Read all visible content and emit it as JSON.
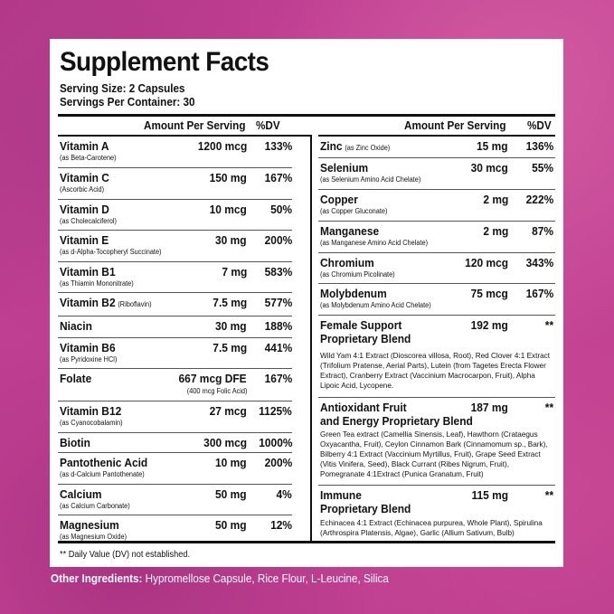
{
  "label": {
    "title": "Supplement Facts",
    "serving_size": "Serving Size: 2 Capsules",
    "servings_per_container": "Servings Per Container: 30",
    "col_amount": "Amount Per Serving",
    "col_dv": "%DV",
    "footnote": "** Daily Value (DV) not established.",
    "other_label": "Other Ingredients:",
    "other_value": "Hypromellose Capsule, Rice Flour, L-Leucine, Silica"
  },
  "left": [
    {
      "name": "Vitamin A",
      "sub": "(as Beta-Carotene)",
      "amount": "1200 mcg",
      "dv": "133%"
    },
    {
      "name": "Vitamin C",
      "sub": "(Ascorbic Acid)",
      "amount": "150 mg",
      "dv": "167%"
    },
    {
      "name": "Vitamin D",
      "sub": "(as Cholecalciferol)",
      "amount": "10 mcg",
      "dv": "50%"
    },
    {
      "name": "Vitamin E",
      "sub": "(as d-Alpha-Tocopheryl Succinate)",
      "amount": "30 mg",
      "dv": "200%"
    },
    {
      "name": "Vitamin B1",
      "sub": "(as Thiamin Mononitrate)",
      "amount": "7 mg",
      "dv": "583%"
    },
    {
      "name": "Vitamin B2",
      "inline": "(Riboflavin)",
      "amount": "7.5 mg",
      "dv": "577%"
    },
    {
      "name": "Niacin",
      "amount": "30 mg",
      "dv": "188%"
    },
    {
      "name": "Vitamin B6",
      "sub": "(as Pyridoxine HCl)",
      "amount": "7.5 mg",
      "dv": "441%"
    },
    {
      "name": "Folate",
      "amount": "667 mcg DFE",
      "amount_sub": "(400 mcg Folic Acid)",
      "dv": "167%"
    },
    {
      "name": "Vitamin B12",
      "sub": "(as Cyanocobalamin)",
      "amount": "27 mcg",
      "dv": "1125%"
    },
    {
      "name": "Biotin",
      "amount": "300 mcg",
      "dv": "1000%"
    },
    {
      "name": "Pantothenic Acid",
      "sub": "(as d-Calcium Pantothenate)",
      "amount": "10 mg",
      "dv": "200%"
    },
    {
      "name": "Calcium",
      "sub": "(as Calcium Carbonate)",
      "amount": "50 mg",
      "dv": "4%"
    },
    {
      "name": "Magnesium",
      "sub": "(as Magnesium Oxide)",
      "amount": "50 mg",
      "dv": "12%"
    }
  ],
  "right": [
    {
      "name": "Zinc",
      "inline": "(as Zinc Oxide)",
      "amount": "15 mg",
      "dv": "136%"
    },
    {
      "name": "Selenium",
      "sub": "(as Selenium Amino Acid Chelate)",
      "amount": "30 mcg",
      "dv": "55%"
    },
    {
      "name": "Copper",
      "sub": "(as Copper Gluconate)",
      "amount": "2 mg",
      "dv": "222%"
    },
    {
      "name": "Manganese",
      "sub": "(as Manganese Amino Acid Chelate)",
      "amount": "2 mg",
      "dv": "87%"
    },
    {
      "name": "Chromium",
      "sub": "(as Chromium Picolinate)",
      "amount": "120 mcg",
      "dv": "343%"
    },
    {
      "name": "Molybdenum",
      "sub": "(as Molybdenum Amino Acid Chelate)",
      "amount": "75 mcg",
      "dv": "167%"
    }
  ],
  "blends": [
    {
      "line1": "Female Support",
      "line2": "Proprietary Blend",
      "amount": "192 mg",
      "dv": "**",
      "desc": "Wild Yam 4:1 Extract (Dioscorea villosa, Root), Red Clover 4:1 Extract (Trifolium Pratense, Aerial Parts), Lutein (from Tagetes Erecta Flower Extract), Cranberry Extract (Vaccinium Macrocarpon, Fruit), Alpha Lipoic Acid, Lycopene."
    },
    {
      "line1": "Antioxidant Fruit",
      "line2": "and Energy Proprietary Blend",
      "amount": "187 mg",
      "dv": "**",
      "desc": "Green Tea extract (Camellia Sinensis, Leaf), Hawthorn (Crataegus Oxyacantha, Fruit), Ceylon Cinnamon Bark (Cinnamomum sp., Bark), Bilberry 4:1 Extract (Vaccinium Myrtillus, Fruit), Grape Seed Extract (Vitis Vinifera, Seed), Black Currant (Ribes Nigrum, Fruit), Pomegranate 4:1Extract (Punica Granatum, Fruit)"
    },
    {
      "line1": "Immune",
      "line2": "Proprietary Blend",
      "amount": "115 mg",
      "dv": "**",
      "desc": "Echinacea 4:1 Extract (Echinacea purpurea, Whole Plant), Spirulina (Arthrospira Platensis, Algae), Garlic (Allium Sativum, Bulb)"
    }
  ]
}
